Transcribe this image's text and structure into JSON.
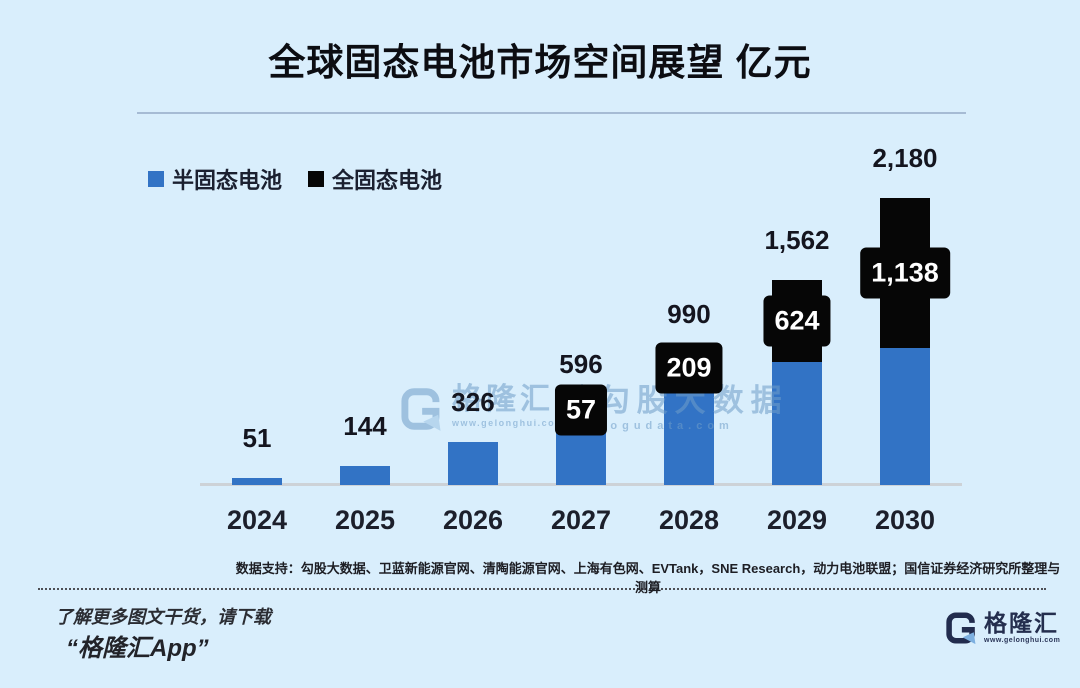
{
  "title": "全球固态电池市场空间展望 亿元",
  "colors": {
    "background": "#d9eefc",
    "semi_solid": "#3273c5",
    "all_solid": "#060606",
    "axis": "#cdd2d7",
    "label_text": "#14151f",
    "watermark": "#6f9ec9"
  },
  "legend": [
    {
      "label": "半固态电池",
      "color": "#3273c5"
    },
    {
      "label": "全固态电池",
      "color": "#060606"
    }
  ],
  "chart_data": {
    "type": "bar",
    "stacked": true,
    "title": "全球固态电池市场空间展望 亿元",
    "unit": "亿元",
    "categories": [
      "2024",
      "2025",
      "2026",
      "2027",
      "2028",
      "2029",
      "2030"
    ],
    "series": [
      {
        "name": "半固态电池",
        "color": "#3273c5",
        "values": [
          51,
          144,
          326,
          539,
          781,
          938,
          1042
        ]
      },
      {
        "name": "全固态电池",
        "color": "#060606",
        "values": [
          0,
          0,
          0,
          57,
          209,
          624,
          1138
        ]
      }
    ],
    "totals": [
      51,
      144,
      326,
      596,
      990,
      1562,
      2180
    ],
    "total_labels": [
      "51",
      "144",
      "326",
      "596",
      "990",
      "1,562",
      "2,180"
    ],
    "segment_labels": [
      "",
      "",
      "",
      "57",
      "209",
      "624",
      "1,138"
    ],
    "ylim": [
      0,
      2300
    ],
    "grid": false,
    "legend_position": "top-left"
  },
  "watermark": {
    "brand": "格隆汇",
    "brand_url": "www.gelonghui.com",
    "partner": "勾股大数据",
    "partner_url": "gogudata.com"
  },
  "source_note": "数据支持：勾股大数据、卫蓝新能源官网、清陶能源官网、上海有色网、EVTank，SNE Research，动力电池联盟；国信证券经济研究所整理与测算",
  "footer": {
    "line1": "了解更多图文干货，请下载",
    "line2": "“格隆汇App”",
    "logo_text": "格隆汇",
    "logo_url": "www.gelonghui.com"
  }
}
